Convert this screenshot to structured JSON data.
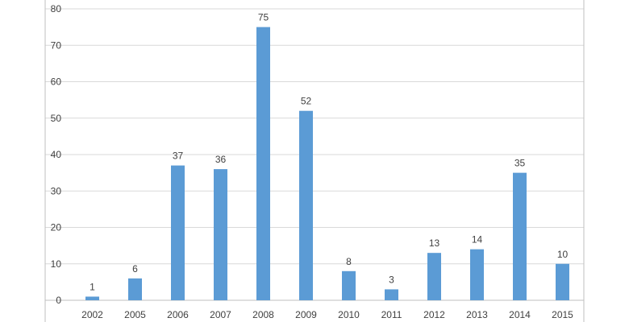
{
  "chart_data": {
    "type": "bar",
    "title": "",
    "xlabel": "",
    "ylabel": "",
    "categories": [
      "2002",
      "2005",
      "2006",
      "2007",
      "2008",
      "2009",
      "2010",
      "2011",
      "2012",
      "2013",
      "2014",
      "2015"
    ],
    "values": [
      1,
      6,
      37,
      36,
      75,
      52,
      8,
      3,
      13,
      14,
      35,
      10
    ],
    "ylim": [
      0,
      80
    ],
    "yticks": [
      0,
      10,
      20,
      30,
      40,
      50,
      60,
      70,
      80
    ],
    "grid": true,
    "legend": "none",
    "data_labels": true,
    "bar_color": "#5b9bd5",
    "grid_color": "#d9d9d9",
    "text_color": "#404040"
  }
}
